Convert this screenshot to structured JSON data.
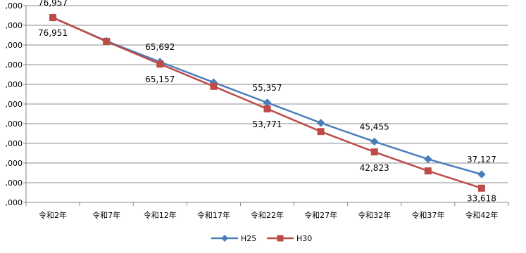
{
  "chart_data": {
    "type": "line",
    "title": "",
    "xlabel": "",
    "ylabel": "",
    "categories": [
      "令和2年",
      "令和7年",
      "令和12年",
      "令和17年",
      "令和22年",
      "令和27年",
      "令和32年",
      "令和37年",
      "令和42年"
    ],
    "ylim": [
      30000,
      80000
    ],
    "yticks": [
      30000,
      35000,
      40000,
      45000,
      50000,
      55000,
      60000,
      65000,
      70000,
      75000,
      80000
    ],
    "ytick_labels": [
      ",000",
      ",000",
      ",000",
      ",000",
      ",000",
      ",000",
      ",000",
      ",000",
      ",000",
      ",000",
      ",000"
    ],
    "grid": true,
    "legend_position": "bottom",
    "series": [
      {
        "name": "H25",
        "color": "#4a7ebb",
        "marker": "diamond",
        "values": [
          76957,
          71000,
          65692,
          60500,
          55357,
          50200,
          45455,
          41000,
          37127
        ],
        "labels": [
          "76,957",
          "",
          "65,692",
          "",
          "55,357",
          "",
          "45,455",
          "",
          "37,127"
        ]
      },
      {
        "name": "H30",
        "color": "#be4b48",
        "marker": "square",
        "values": [
          76951,
          70900,
          65157,
          59500,
          53771,
          48000,
          42823,
          38000,
          33618
        ],
        "labels": [
          "76,951",
          "",
          "65,157",
          "",
          "53,771",
          "",
          "42,823",
          "",
          "33,618"
        ]
      }
    ]
  }
}
